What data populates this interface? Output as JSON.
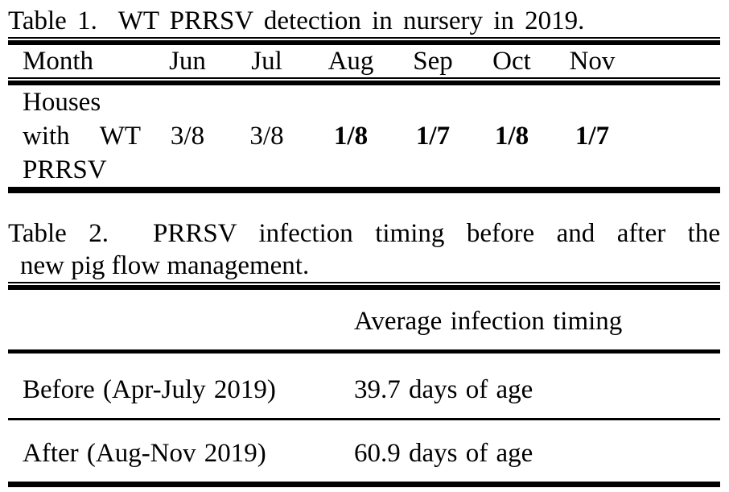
{
  "page": {
    "background_color": "#ffffff",
    "text_color": "#000000"
  },
  "table1": {
    "caption": "Table 1.  WT PRRSV detection in nursery in 2019.",
    "columns": [
      "Month",
      "Jun",
      "Jul",
      "Aug",
      "Sep",
      "Oct",
      "Nov"
    ],
    "row_label_lines": [
      "Houses",
      "with",
      "WT",
      "PRRSV"
    ],
    "row_label_full": "Houses with WT PRRSV",
    "values": [
      "3/8",
      "3/8",
      "1/8",
      "1/7",
      "1/8",
      "1/7"
    ],
    "bold_flags": [
      false,
      false,
      true,
      true,
      true,
      true
    ]
  },
  "table2": {
    "caption_line1": "Table 2.  PRRSV infection timing before and after the",
    "caption_line2": "new pig flow management.",
    "caption_full": "Table 2. PRRSV infection timing before and after the new pig flow management.",
    "value_column_header": "Average infection timing",
    "rows": [
      {
        "label": "Before (Apr-July 2019)",
        "value": "39.7 days of age"
      },
      {
        "label": "After (Aug-Nov 2019)",
        "value": "60.9 days of age"
      }
    ]
  }
}
